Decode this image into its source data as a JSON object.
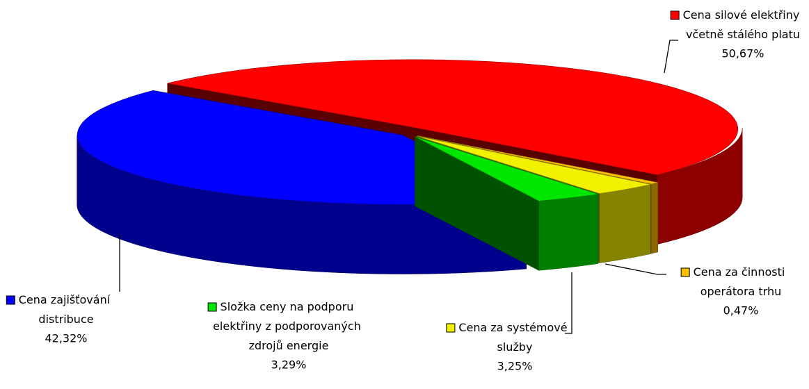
{
  "chart_data": {
    "type": "pie",
    "categories": [
      "Cena silové elektřiny včetně stálého platu",
      "Cena za činnosti operátora trhu",
      "Cena za systémové služby",
      "Složka ceny na podporu elektřiny z podporovaných zdrojů energie",
      "Cena zajišťování distribuce"
    ],
    "values": [
      50.67,
      0.47,
      3.25,
      3.29,
      42.32
    ],
    "value_labels": [
      "50,67%",
      "0,47%",
      "3,25%",
      "3,29%",
      "42,32%"
    ],
    "colors": [
      "#ff0000",
      "#ffc000",
      "#f0f000",
      "#00e600",
      "#0000ff"
    ]
  }
}
